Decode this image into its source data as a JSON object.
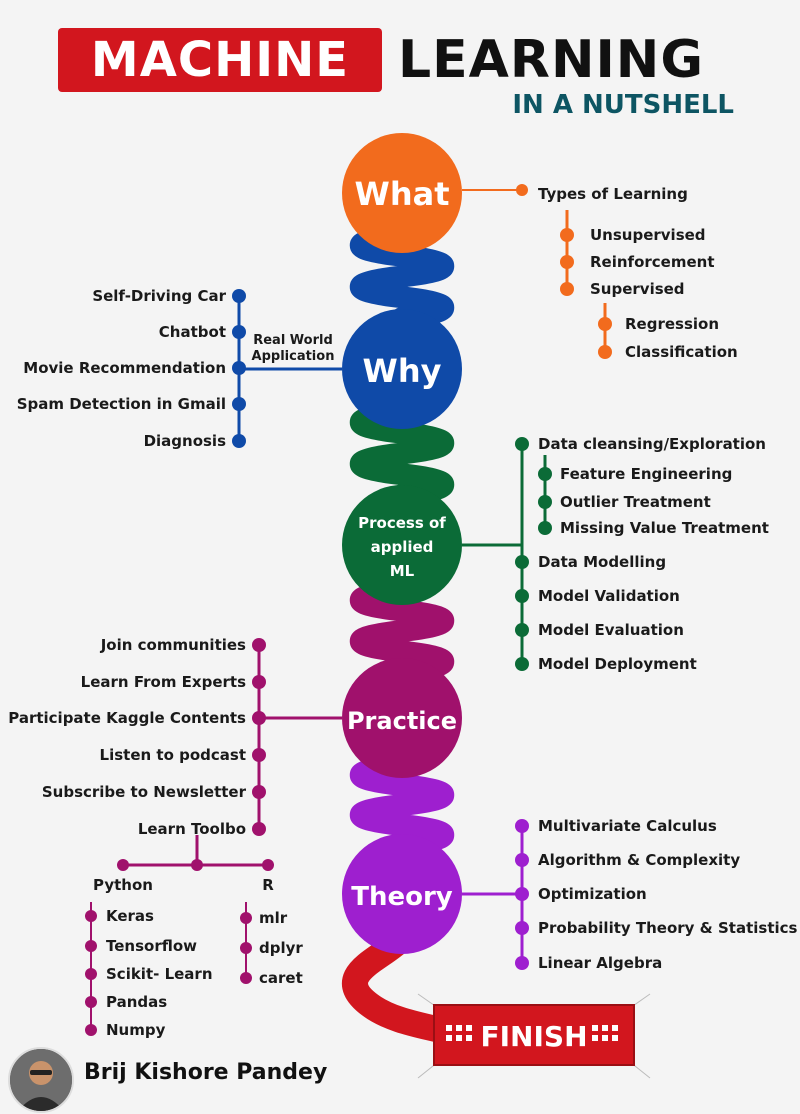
{
  "header": {
    "title_left": "MACHINE",
    "title_right": "LEARNING",
    "subtitle": "IN A NUTSHELL"
  },
  "colors": {
    "what": "#f26b1d",
    "why": "#0f4aa8",
    "process": "#0b6b37",
    "practice": "#a0116c",
    "theory": "#9e1fcf",
    "finish": "#d2161e"
  },
  "what": {
    "node": "What",
    "types_title": "Types of Learning",
    "types": [
      "Unsupervised",
      "Reinforcement",
      "Supervised"
    ],
    "supervised_sub": [
      "Regression",
      "Classification"
    ]
  },
  "why": {
    "node": "Why",
    "connector": [
      "Real World",
      "Application"
    ],
    "items": [
      "Self-Driving Car",
      "Chatbot",
      "Movie Recommendation",
      "Spam Detection in Gmail",
      "Diagnosis"
    ]
  },
  "process": {
    "node": [
      "Process of",
      "applied",
      "ML"
    ],
    "first": "Data cleansing/Exploration",
    "sub": [
      "Feature Engineering",
      "Outlier Treatment",
      "Missing Value Treatment"
    ],
    "rest": [
      "Data Modelling",
      "Model Validation",
      "Model Evaluation",
      "Model Deployment"
    ]
  },
  "practice": {
    "node": "Practice",
    "items": [
      "Join communities",
      "Learn From Experts",
      "Participate Kaggle Contents",
      "Listen to podcast",
      "Subscribe to Newsletter",
      "Learn Toolbo"
    ],
    "python_label": "Python",
    "python": [
      "Keras",
      "Tensorflow",
      "Scikit- Learn",
      "Pandas",
      "Numpy"
    ],
    "r_label": "R",
    "r": [
      "mlr",
      "dplyr",
      "caret"
    ]
  },
  "theory": {
    "node": "Theory",
    "items": [
      "Multivariate Calculus",
      "Algorithm & Complexity",
      "Optimization",
      "Probability Theory & Statistics",
      "Linear Algebra"
    ]
  },
  "finish": {
    "label": "FINISH"
  },
  "author": {
    "name": "Brij Kishore Pandey"
  }
}
